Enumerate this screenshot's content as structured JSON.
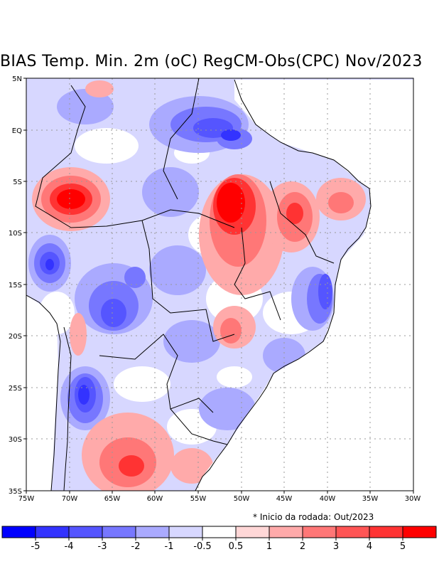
{
  "title": "BIAS Temp. Min. 2m (oC) RegCM-Obs(CPC) Nov/2023",
  "footnote": "* Inicio da rodada: Out/2023",
  "lat_labels": [
    "5N",
    "EQ",
    "5S",
    "10S",
    "15S",
    "20S",
    "25S",
    "30S",
    "35S"
  ],
  "lon_labels": [
    "75W",
    "70W",
    "65W",
    "60W",
    "55W",
    "50W",
    "45W",
    "40W",
    "35W",
    "30W"
  ],
  "map_extent": {
    "lon": [
      -75,
      -30
    ],
    "lat": [
      -35,
      5
    ]
  },
  "colorbar": {
    "labels": [
      "-5",
      "-4",
      "-3",
      "-2",
      "-1",
      "-0.5",
      "0.5",
      "1",
      "2",
      "3",
      "4",
      "5"
    ],
    "colors": [
      "#0000ff",
      "#3333ff",
      "#5555ff",
      "#7777ff",
      "#aaaaff",
      "#d7d7ff",
      "#ffffff",
      "#ffd7d7",
      "#ffaaaa",
      "#ff7777",
      "#ff5555",
      "#ff3333",
      "#ff0000"
    ]
  }
}
